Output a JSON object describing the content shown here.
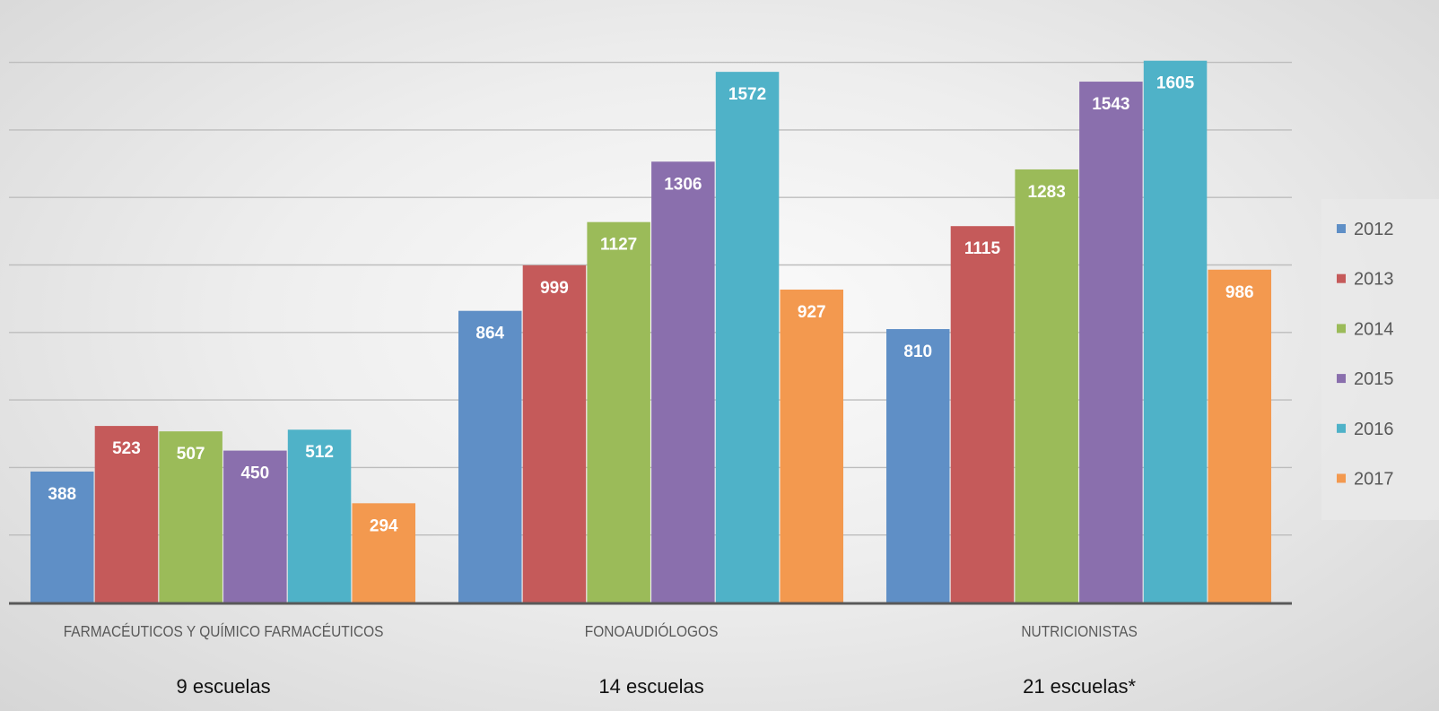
{
  "chart_data": {
    "type": "bar",
    "categories": [
      "FARMACÉUTICOS Y QUÍMICO FARMACÉUTICOS",
      "FONOAUDIÓLOGOS",
      "NUTRICIONISTAS"
    ],
    "subcategories": [
      "9 escuelas",
      "14 escuelas",
      "21 escuelas*"
    ],
    "series": [
      {
        "name": "2012",
        "color": "#5f8fc6",
        "values": [
          388,
          864,
          810
        ]
      },
      {
        "name": "2013",
        "color": "#c55a5a",
        "values": [
          523,
          999,
          1115
        ]
      },
      {
        "name": "2014",
        "color": "#9bbb59",
        "values": [
          507,
          1127,
          1283
        ]
      },
      {
        "name": "2015",
        "color": "#8a6fad",
        "values": [
          450,
          1306,
          1543
        ]
      },
      {
        "name": "2016",
        "color": "#4fb2c8",
        "values": [
          512,
          1572,
          1605
        ]
      },
      {
        "name": "2017",
        "color": "#f3994f",
        "values": [
          294,
          927,
          986
        ]
      }
    ],
    "ylim": [
      0,
      1800
    ],
    "grid": true,
    "legend_position": "right"
  }
}
